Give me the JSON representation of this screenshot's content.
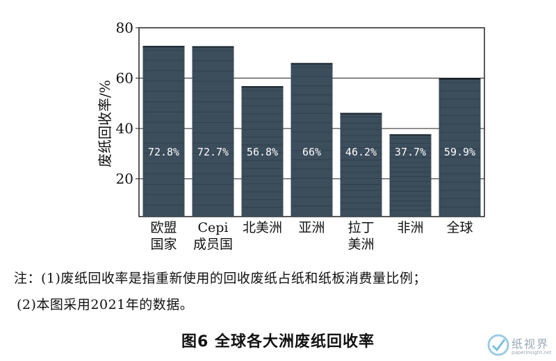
{
  "chart_data": {
    "type": "bar",
    "ylabel": "废纸回收率/%",
    "ylim": [
      5,
      80
    ],
    "yticks": [
      20,
      40,
      60,
      80
    ],
    "grid": true,
    "categories": [
      [
        "欧盟",
        "国家"
      ],
      [
        "Cepi",
        "成员国"
      ],
      [
        "北美洲"
      ],
      [
        "亚洲"
      ],
      [
        "拉丁",
        "美洲"
      ],
      [
        "非洲"
      ],
      [
        "全球"
      ]
    ],
    "values": [
      72.8,
      72.7,
      56.8,
      66,
      46.2,
      37.7,
      59.9
    ],
    "data_labels": [
      "72.8%",
      "72.7%",
      "56.8%",
      "66%",
      "46.2%",
      "37.7%",
      "59.9%"
    ],
    "bar_color": "#3c4d5c"
  },
  "notes": {
    "line1": "注：(1)废纸回收率是指重新使用的回收废纸占纸和纸板消费量比例；",
    "line2": "(2)本图采用2021年的数据。"
  },
  "caption": "图6    全球各大洲废纸回收率",
  "watermark": {
    "text": "纸视界",
    "url": "paperinsight.net"
  }
}
